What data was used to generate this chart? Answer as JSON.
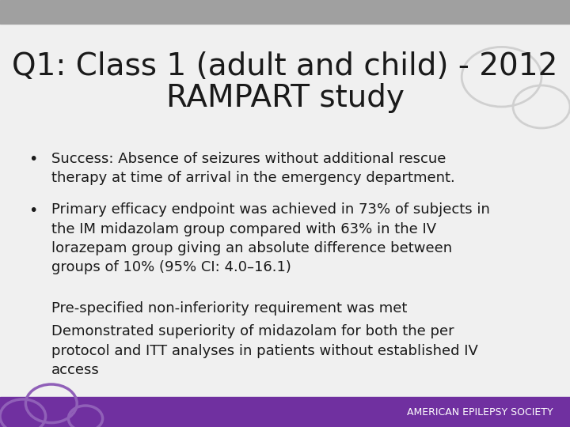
{
  "title_line1": "Q1: Class 1 (adult and child) - 2012",
  "title_line2": "RAMPART study",
  "title_fontsize": 28,
  "title_color": "#1a1a1a",
  "background_color": "#f0f0f0",
  "header_bar_color": "#a0a0a0",
  "header_bar_height": 0.055,
  "footer_bar_color": "#7030a0",
  "footer_bar_height": 0.07,
  "footer_text": "AMERICAN EPILEPSY SOCIETY",
  "footer_text_color": "#ffffff",
  "footer_fontsize": 9,
  "bullet1": "Success: Absence of seizures without additional rescue\ntherapy at time of arrival in the emergency department.",
  "bullet2_part1": "Primary efficacy endpoint was achieved in 73% of subjects in\nthe IM midazolam group compared with 63% in the IV\nlorazepam group giving an absolute difference between\ngroups of 10% (95% CI: 4.0–16.1)",
  "bullet2_part2": "Pre-specified non-inferiority requirement was met",
  "bullet2_part3": "Demonstrated superiority of midazolam for both the per\nprotocol and ITT analyses in patients without established IV\naccess",
  "body_fontsize": 13,
  "body_color": "#1a1a1a",
  "bullet_color": "#1a1a1a",
  "watermark_color": "#d0d0d0",
  "watermark_footer_color": "#9060b8"
}
